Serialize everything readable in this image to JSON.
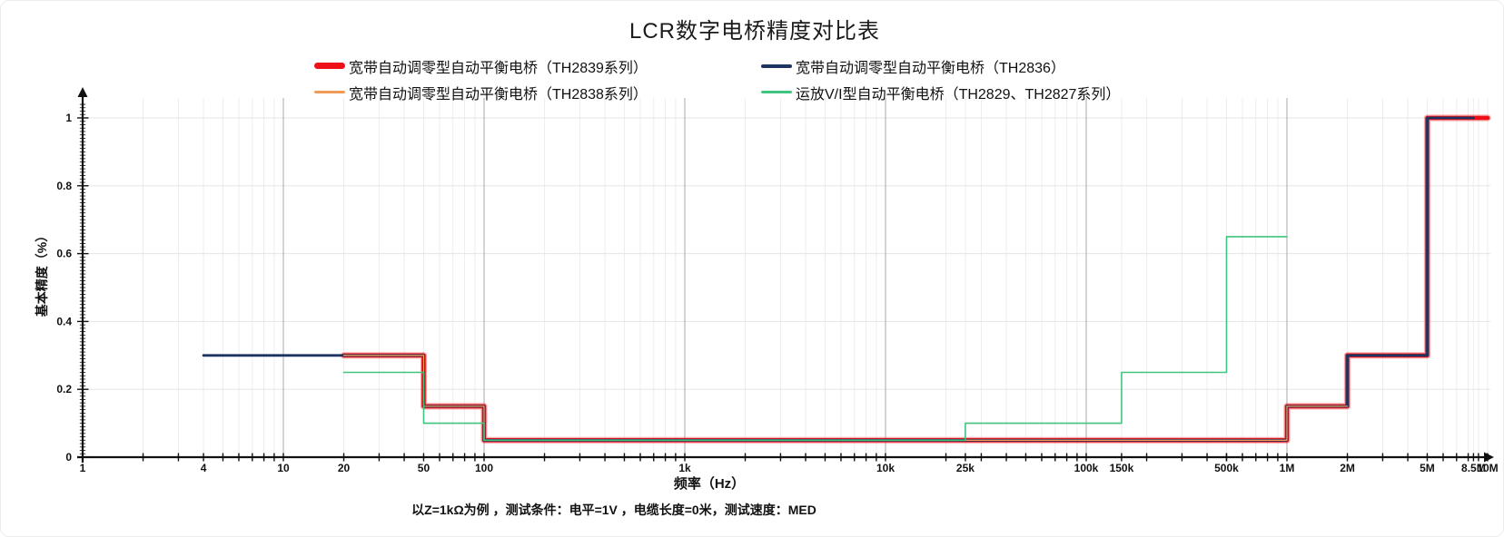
{
  "title": "LCR数字电桥精度对比表",
  "caption": "以Z=1kΩ为例 ，测试条件：电平=1V ，电缆长度=0米，测试速度：MED",
  "legend": {
    "items": [
      {
        "label": "宽带自动调零型自动平衡电桥（TH2839系列）",
        "color": "#ee1018",
        "thickness": 7
      },
      {
        "label": "宽带自动调零型自动平衡电桥（TH2836）",
        "color": "#1d3461",
        "thickness": 4
      },
      {
        "label": "宽带自动调零型自动平衡电桥（TH2838系列）",
        "color": "#f29b57",
        "thickness": 2.5
      },
      {
        "label": "运放V/I型自动平衡电桥（TH2829、TH2827系列）",
        "color": "#41c47d",
        "thickness": 2.5
      }
    ]
  },
  "chart_data": {
    "type": "line",
    "subtype": "step",
    "title": "LCR数字电桥精度对比表",
    "xlabel": "频率（Hz）",
    "ylabel": "基本精度（%）",
    "x_scale": "log",
    "xlim": [
      1,
      10000000
    ],
    "ylim": [
      0,
      1.05
    ],
    "grid": true,
    "legend_position": "top",
    "x_ticks": [
      {
        "v": 1,
        "label": "1"
      },
      {
        "v": 4,
        "label": "4"
      },
      {
        "v": 10,
        "label": "10"
      },
      {
        "v": 20,
        "label": "20"
      },
      {
        "v": 50,
        "label": "50"
      },
      {
        "v": 100,
        "label": "100"
      },
      {
        "v": 1000,
        "label": "1k"
      },
      {
        "v": 10000,
        "label": "10k"
      },
      {
        "v": 25000,
        "label": "25k"
      },
      {
        "v": 100000,
        "label": "100k"
      },
      {
        "v": 150000,
        "label": "150k"
      },
      {
        "v": 500000,
        "label": "500k"
      },
      {
        "v": 1000000,
        "label": "1M"
      },
      {
        "v": 2000000,
        "label": "2M"
      },
      {
        "v": 5000000,
        "label": "5M"
      },
      {
        "v": 8500000,
        "label": "8.5M"
      },
      {
        "v": 10000000,
        "label": "10M"
      }
    ],
    "extra_minor_ticks": [
      25000,
      150000,
      500000,
      8500000
    ],
    "y_ticks": [
      {
        "v": 0,
        "label": "0"
      },
      {
        "v": 0.2,
        "label": "0.2"
      },
      {
        "v": 0.4,
        "label": "0.4"
      },
      {
        "v": 0.6,
        "label": "0.6"
      },
      {
        "v": 0.8,
        "label": "0.8"
      },
      {
        "v": 1,
        "label": "1"
      }
    ],
    "y_grid": [
      0.2,
      0.4,
      0.6,
      0.8,
      1
    ],
    "series": [
      {
        "id": "th2839",
        "name": "宽带自动调零型自动平衡电桥（TH2839系列）",
        "color": "#ee1018",
        "width": 4.6,
        "halo": true,
        "points": [
          [
            20,
            0.3
          ],
          [
            50,
            0.3
          ],
          [
            50,
            0.15
          ],
          [
            100,
            0.15
          ],
          [
            100,
            0.05
          ],
          [
            1000000,
            0.05
          ],
          [
            1000000,
            0.15
          ],
          [
            2000000,
            0.15
          ],
          [
            2000000,
            0.3
          ],
          [
            5000000,
            0.3
          ],
          [
            5000000,
            1.0
          ],
          [
            10000000,
            1.0
          ]
        ]
      },
      {
        "id": "th2836",
        "name": "宽带自动调零型自动平衡电桥（TH2836）",
        "color": "#1d3461",
        "width": 2.8,
        "halo": false,
        "points": [
          [
            4,
            0.3
          ],
          [
            50,
            0.3
          ],
          [
            50,
            0.15
          ],
          [
            100,
            0.15
          ],
          [
            100,
            0.05
          ],
          [
            1000000,
            0.05
          ],
          [
            1000000,
            0.15
          ],
          [
            2000000,
            0.15
          ],
          [
            2000000,
            0.3
          ],
          [
            5000000,
            0.3
          ],
          [
            5000000,
            1.0
          ],
          [
            8500000,
            1.0
          ]
        ]
      },
      {
        "id": "th2838",
        "name": "宽带自动调零型自动平衡电桥（TH2838系列）",
        "color": "#f29b57",
        "width": 1.3,
        "halo": false,
        "points": [
          [
            20,
            0.3
          ],
          [
            50,
            0.3
          ],
          [
            50,
            0.15
          ],
          [
            100,
            0.15
          ],
          [
            100,
            0.05
          ],
          [
            1000000,
            0.05
          ],
          [
            1000000,
            0.15
          ],
          [
            2000000,
            0.15
          ]
        ]
      },
      {
        "id": "th2829",
        "name": "运放V/I型自动平衡电桥（TH2829、TH2827系列）",
        "color": "#41c47d",
        "width": 1.6,
        "halo": false,
        "points": [
          [
            20,
            0.25
          ],
          [
            50,
            0.25
          ],
          [
            50,
            0.1
          ],
          [
            100,
            0.1
          ],
          [
            100,
            0.05
          ],
          [
            25000,
            0.05
          ],
          [
            25000,
            0.1
          ],
          [
            150000,
            0.1
          ],
          [
            150000,
            0.25
          ],
          [
            500000,
            0.25
          ],
          [
            500000,
            0.65
          ],
          [
            1000000,
            0.65
          ]
        ]
      }
    ]
  }
}
